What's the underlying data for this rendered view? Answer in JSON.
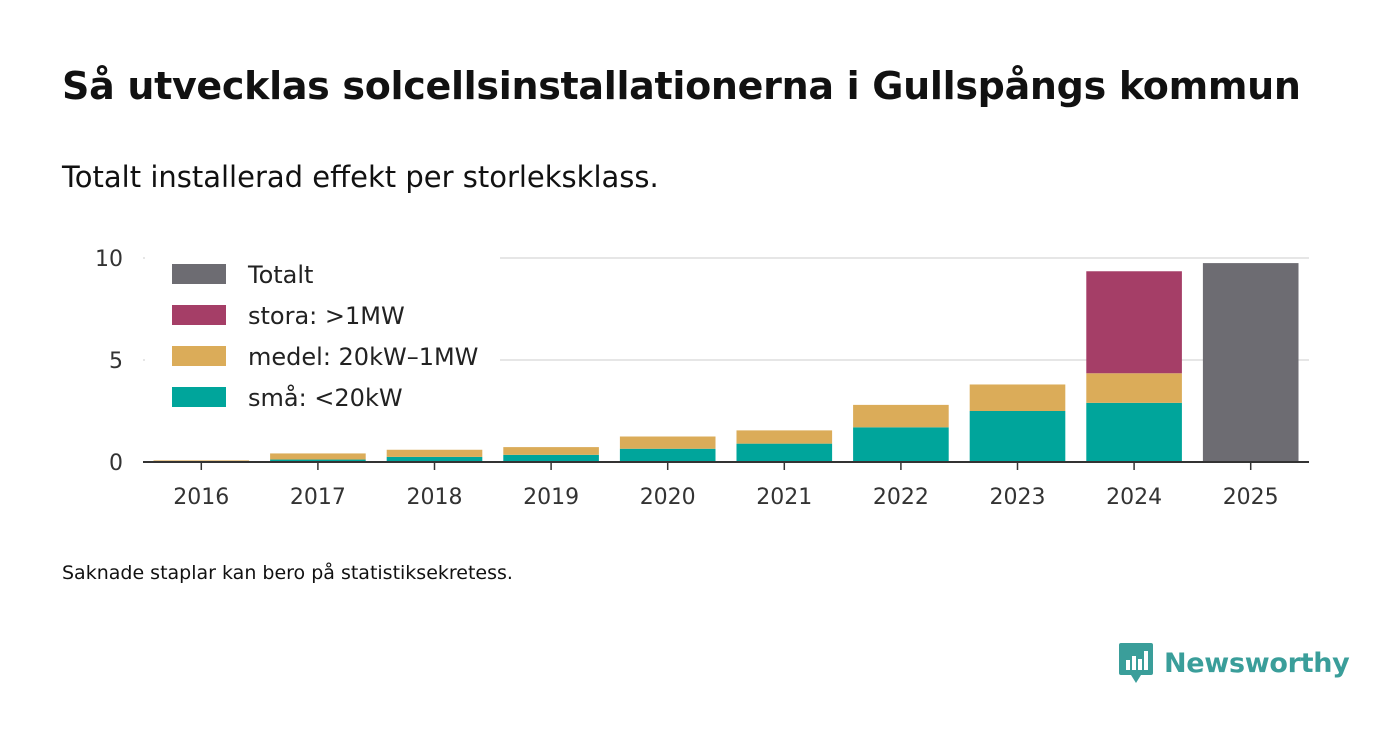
{
  "title": "Så utvecklas solcellsinstallationerna i Gullspångs kommun",
  "subtitle": "Totalt installerad effekt per storleksklass.",
  "footnote": "Saknade staplar kan bero på statistiksekretess.",
  "brand": {
    "name": "Newsworthy",
    "color": "#3a9e9a",
    "logo_icon": "bar-chart-speech-bubble-icon"
  },
  "chart_data": {
    "type": "bar",
    "stacked": true,
    "title": "Så utvecklas solcellsinstallationerna i Gullspångs kommun",
    "subtitle": "Totalt installerad effekt per storleksklass.",
    "xlabel": "",
    "ylabel": "",
    "ylim": [
      0,
      10
    ],
    "yticks": [
      0,
      5,
      10
    ],
    "grid": true,
    "legend_position": "top-left",
    "categories": [
      "2016",
      "2017",
      "2018",
      "2019",
      "2020",
      "2021",
      "2022",
      "2023",
      "2024",
      "2025"
    ],
    "series": [
      {
        "name": "små: <20kW",
        "color": "#00a59b",
        "values": [
          0.02,
          0.12,
          0.25,
          0.35,
          0.65,
          0.9,
          1.7,
          2.5,
          2.9,
          null
        ]
      },
      {
        "name": "medel: 20kW–1MW",
        "color": "#dbac59",
        "values": [
          0.06,
          0.3,
          0.35,
          0.38,
          0.6,
          0.65,
          1.1,
          1.3,
          1.45,
          null
        ]
      },
      {
        "name": "stora: >1MW",
        "color": "#a53e67",
        "values": [
          null,
          null,
          null,
          null,
          null,
          null,
          null,
          null,
          5.0,
          null
        ]
      },
      {
        "name": "Totalt",
        "color": "#6d6c72",
        "values": [
          null,
          null,
          null,
          null,
          null,
          null,
          null,
          null,
          null,
          9.75
        ]
      }
    ]
  }
}
